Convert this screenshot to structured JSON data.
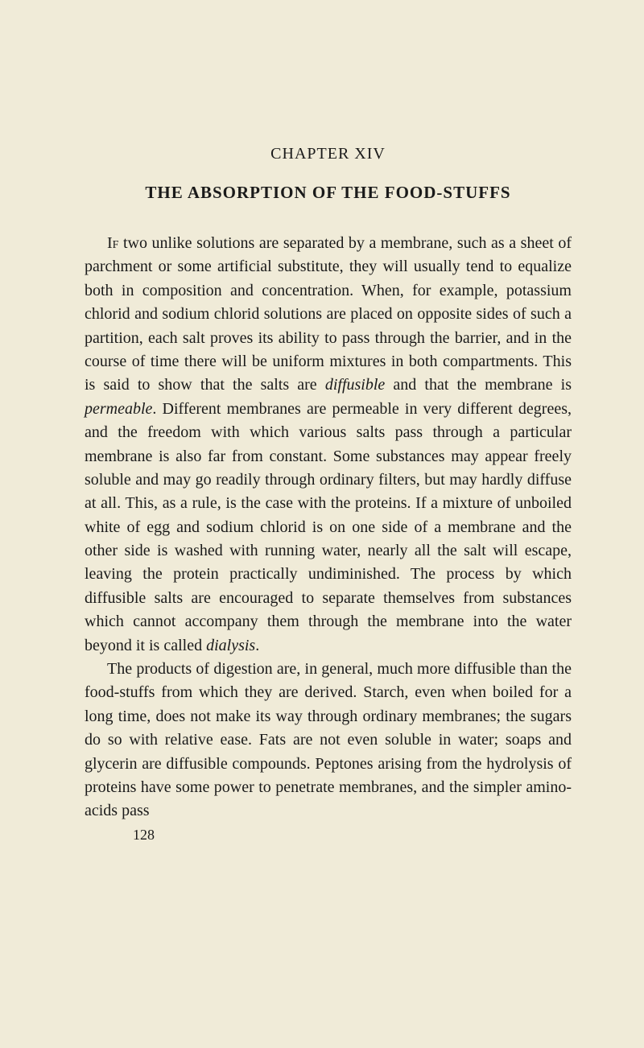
{
  "chapter": {
    "number": "CHAPTER XIV",
    "title": "THE ABSORPTION OF THE FOOD-STUFFS"
  },
  "paragraphs": {
    "p1_lead": "If",
    "p1_part1": " two unlike solutions are separated by a membrane, such as a sheet of parchment or some artificial substitute, they will usually tend to equalize both in composition and concentration. When, for example, potassium chlorid and sodium chlorid solutions are placed on opposite sides of such a partition, each salt proves its ability to pass through the barrier, and in the course of time there will be uniform mixtures in both compartments. This is said to show that the salts are ",
    "p1_italic1": "diffusible",
    "p1_part2": " and that the membrane is ",
    "p1_italic2": "permeable",
    "p1_part3": ". Different membranes are permeable in very different degrees, and the freedom with which various salts pass through a particular membrane is also far from constant. Some substances may appear freely soluble and may go readily through ordinary filters, but may hardly diffuse at all. This, as a rule, is the case with the proteins. If a mixture of unboiled white of egg and sodium chlorid is on one side of a membrane and the other side is washed with running water, nearly all the salt will escape, leaving the protein practically undiminished. The process by which diffusible salts are encouraged to separate themselves from substances which cannot accompany them through the membrane into the water beyond it is called ",
    "p1_italic3": "dialysis",
    "p1_part4": ".",
    "p2": "The products of digestion are, in general, much more diffusible than the food-stuffs from which they are derived. Starch, even when boiled for a long time, does not make its way through ordinary membranes; the sugars do so with relative ease. Fats are not even soluble in water; soaps and glycerin are diffusible compounds. Peptones arising from the hydrolysis of proteins have some power to penetrate membranes, and the simpler amino-acids pass"
  },
  "pageNumber": "128",
  "colors": {
    "background": "#f0ebd8",
    "text": "#1a1a1a"
  }
}
